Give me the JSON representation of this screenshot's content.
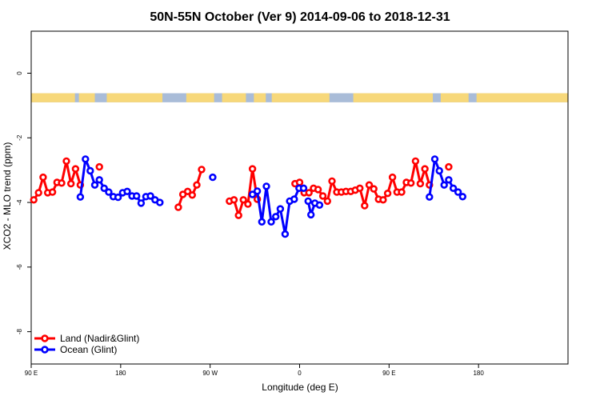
{
  "chart_data": {
    "type": "line",
    "title": "50N-55N October (Ver 9)   2014-09-06 to 2018-12-31",
    "xlabel": "Longitude (deg E)",
    "ylabel": "XCO2 - MLO trend (ppm)",
    "xlim": [
      -90,
      180
    ],
    "ylim": [
      -9.0,
      1.3
    ],
    "x_ticks": [
      {
        "value": -90,
        "label": "90 E"
      },
      {
        "value": -45,
        "label": "180"
      },
      {
        "value": 0,
        "label": "90 W"
      },
      {
        "value": 45,
        "label": "0"
      },
      {
        "value": 90,
        "label": "90 E"
      },
      {
        "value": 135,
        "label": "180"
      }
    ],
    "y_ticks": [
      {
        "value": 0,
        "label": "0"
      },
      {
        "value": -2,
        "label": "-2"
      },
      {
        "value": -4,
        "label": "-4"
      },
      {
        "value": -6,
        "label": "-6"
      },
      {
        "value": -8,
        "label": "-8"
      }
    ],
    "grid": false,
    "legend_position": "bottom-left",
    "land_ocean_strip": {
      "y_range": [
        -0.9,
        -0.62
      ],
      "land_color": "#f7d87a",
      "ocean_color": "#a9bcd8"
    },
    "series": [
      {
        "name": "Land (Nadir&Glint)",
        "color": "#ff0000",
        "points": [
          [
            -88.7,
            -3.92
          ],
          [
            -86.3,
            -3.7
          ],
          [
            -84.0,
            -3.22
          ],
          [
            -81.7,
            -3.7
          ],
          [
            -79.3,
            -3.68
          ],
          [
            -77.0,
            -3.38
          ],
          [
            -74.7,
            -3.4
          ],
          [
            -72.3,
            -2.72
          ],
          [
            -70.0,
            -3.42
          ],
          [
            -67.7,
            -2.96
          ],
          [
            -65.3,
            -3.46
          ],
          [
            null,
            null
          ],
          [
            -55.7,
            -2.9
          ],
          [
            null,
            null
          ],
          [
            -16.0,
            -4.15
          ],
          [
            -13.7,
            -3.75
          ],
          [
            -11.3,
            -3.66
          ],
          [
            -9.0,
            -3.77
          ],
          [
            -6.7,
            -3.46
          ],
          [
            -4.3,
            -2.98
          ],
          [
            null,
            null
          ],
          [
            9.7,
            -3.96
          ],
          [
            12.0,
            -3.92
          ],
          [
            14.3,
            -4.4
          ],
          [
            16.7,
            -3.92
          ],
          [
            19.0,
            -4.05
          ],
          [
            21.3,
            -2.96
          ],
          [
            23.7,
            -3.9
          ],
          [
            null,
            null
          ],
          [
            42.7,
            -3.42
          ],
          [
            45.0,
            -3.38
          ],
          [
            47.3,
            -3.7
          ],
          [
            49.7,
            -3.7
          ],
          [
            52.0,
            -3.56
          ],
          [
            54.3,
            -3.6
          ],
          [
            56.7,
            -3.8
          ],
          [
            59.0,
            -3.96
          ],
          [
            61.3,
            -3.34
          ],
          [
            63.7,
            -3.68
          ],
          [
            66.0,
            -3.68
          ],
          [
            68.3,
            -3.66
          ],
          [
            70.7,
            -3.66
          ],
          [
            73.0,
            -3.62
          ],
          [
            75.3,
            -3.56
          ],
          [
            77.7,
            -4.1
          ],
          [
            80.0,
            -3.46
          ],
          [
            82.3,
            -3.58
          ],
          [
            84.7,
            -3.9
          ],
          [
            87.0,
            -3.92
          ],
          [
            89.3,
            -3.72
          ],
          [
            91.7,
            -3.22
          ],
          [
            94.0,
            -3.68
          ],
          [
            96.3,
            -3.68
          ],
          [
            98.7,
            -3.38
          ],
          [
            101.0,
            -3.4
          ],
          [
            103.3,
            -2.72
          ],
          [
            105.7,
            -3.42
          ],
          [
            108.0,
            -2.96
          ],
          [
            110.3,
            -3.46
          ],
          [
            null,
            null
          ],
          [
            120.0,
            -2.9
          ]
        ]
      },
      {
        "name": "Ocean (Glint)",
        "color": "#0000ff",
        "points": [
          [
            -65.3,
            -3.83
          ],
          [
            -62.7,
            -2.66
          ],
          [
            -60.3,
            -3.02
          ],
          [
            -58.0,
            -3.46
          ],
          [
            -55.7,
            -3.3
          ],
          [
            -53.3,
            -3.56
          ],
          [
            -51.0,
            -3.68
          ],
          [
            -48.7,
            -3.82
          ],
          [
            -46.3,
            -3.84
          ],
          [
            -44.0,
            -3.7
          ],
          [
            -41.7,
            -3.66
          ],
          [
            -39.3,
            -3.8
          ],
          [
            -37.0,
            -3.8
          ],
          [
            -34.7,
            -4.02
          ],
          [
            -32.3,
            -3.82
          ],
          [
            -30.0,
            -3.8
          ],
          [
            -27.7,
            -3.92
          ],
          [
            -25.3,
            -4.0
          ],
          [
            null,
            null
          ],
          [
            1.3,
            -3.22
          ],
          [
            null,
            null
          ],
          [
            21.3,
            -3.75
          ],
          [
            23.7,
            -3.65
          ],
          [
            26.0,
            -4.6
          ],
          [
            28.3,
            -3.5
          ],
          [
            30.7,
            -4.6
          ],
          [
            33.0,
            -4.44
          ],
          [
            35.3,
            -4.2
          ],
          [
            37.7,
            -4.98
          ],
          [
            40.0,
            -3.96
          ],
          [
            42.3,
            -3.9
          ],
          [
            44.7,
            -3.56
          ],
          [
            47.0,
            -3.56
          ],
          [
            null,
            null
          ],
          [
            49.3,
            -3.96
          ],
          [
            50.7,
            -4.38
          ],
          [
            52.7,
            -4.02
          ],
          [
            55.0,
            -4.08
          ],
          [
            null,
            null
          ],
          [
            110.3,
            -3.83
          ],
          [
            113.0,
            -2.66
          ],
          [
            115.3,
            -3.02
          ],
          [
            117.7,
            -3.46
          ],
          [
            120.0,
            -3.3
          ],
          [
            122.3,
            -3.56
          ],
          [
            124.7,
            -3.68
          ],
          [
            127.0,
            -3.82
          ]
        ]
      }
    ]
  }
}
